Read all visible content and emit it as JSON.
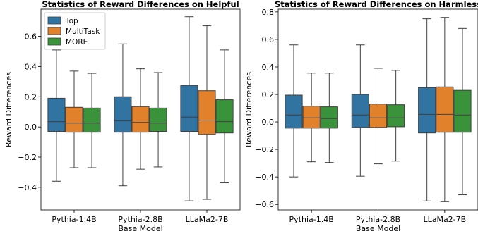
{
  "chart_data": [
    {
      "type": "box",
      "title": "Statistics of Reward Differences on Helpful",
      "xlabel": "Base Model",
      "ylabel": "Reward Differences",
      "ylim": [
        -0.55,
        0.78
      ],
      "yticks": [
        -0.4,
        -0.2,
        0.0,
        0.2,
        0.4,
        0.6
      ],
      "ytick_labels": [
        "−0.4",
        "−0.2",
        "0.0",
        "0.2",
        "0.4",
        "0.6"
      ],
      "categories": [
        "Pythia-1.4B",
        "Pythia-2.8B",
        "LLaMa2-7B"
      ],
      "legend": {
        "position": "top-left"
      },
      "series": [
        {
          "name": "Top",
          "color": "#3274a1",
          "boxes": [
            {
              "min": -0.36,
              "q1": -0.03,
              "median": 0.035,
              "q3": 0.19,
              "max": 0.51
            },
            {
              "min": -0.39,
              "q1": -0.035,
              "median": 0.04,
              "q3": 0.2,
              "max": 0.55
            },
            {
              "min": -0.49,
              "q1": -0.03,
              "median": 0.065,
              "q3": 0.275,
              "max": 0.73
            }
          ]
        },
        {
          "name": "MultiTask",
          "color": "#e1812c",
          "boxes": [
            {
              "min": -0.27,
              "q1": -0.035,
              "median": 0.025,
              "q3": 0.13,
              "max": 0.37
            },
            {
              "min": -0.28,
              "q1": -0.035,
              "median": 0.03,
              "q3": 0.135,
              "max": 0.385
            },
            {
              "min": -0.48,
              "q1": -0.05,
              "median": 0.045,
              "q3": 0.24,
              "max": 0.67
            }
          ]
        },
        {
          "name": "MORE",
          "color": "#3a923a",
          "boxes": [
            {
              "min": -0.27,
              "q1": -0.035,
              "median": 0.025,
              "q3": 0.125,
              "max": 0.355
            },
            {
              "min": -0.265,
              "q1": -0.03,
              "median": 0.025,
              "q3": 0.125,
              "max": 0.36
            },
            {
              "min": -0.37,
              "q1": -0.04,
              "median": 0.035,
              "q3": 0.18,
              "max": 0.51
            }
          ]
        }
      ]
    },
    {
      "type": "box",
      "title": "Statistics of Reward Differences on Harmless",
      "xlabel": "Base Model",
      "ylabel": "Reward Differences",
      "ylim": [
        -0.64,
        0.82
      ],
      "yticks": [
        -0.6,
        -0.4,
        -0.2,
        0.0,
        0.2,
        0.4,
        0.6,
        0.8
      ],
      "ytick_labels": [
        "−0.6",
        "−0.4",
        "−0.2",
        "0.0",
        "0.2",
        "0.4",
        "0.6",
        "0.8"
      ],
      "categories": [
        "Pythia-1.4B",
        "Pythia-2.8B",
        "LLaMa2-7B"
      ],
      "series": [
        {
          "name": "Top",
          "color": "#3274a1",
          "boxes": [
            {
              "min": -0.4,
              "q1": -0.045,
              "median": 0.05,
              "q3": 0.195,
              "max": 0.56
            },
            {
              "min": -0.395,
              "q1": -0.04,
              "median": 0.05,
              "q3": 0.2,
              "max": 0.56
            },
            {
              "min": -0.575,
              "q1": -0.08,
              "median": 0.055,
              "q3": 0.25,
              "max": 0.75
            }
          ]
        },
        {
          "name": "MultiTask",
          "color": "#e1812c",
          "boxes": [
            {
              "min": -0.29,
              "q1": -0.045,
              "median": 0.03,
              "q3": 0.115,
              "max": 0.355
            },
            {
              "min": -0.305,
              "q1": -0.04,
              "median": 0.03,
              "q3": 0.13,
              "max": 0.39
            },
            {
              "min": -0.58,
              "q1": -0.075,
              "median": 0.055,
              "q3": 0.255,
              "max": 0.76
            }
          ]
        },
        {
          "name": "MORE",
          "color": "#3a923a",
          "boxes": [
            {
              "min": -0.295,
              "q1": -0.045,
              "median": 0.025,
              "q3": 0.11,
              "max": 0.355
            },
            {
              "min": -0.285,
              "q1": -0.035,
              "median": 0.03,
              "q3": 0.125,
              "max": 0.375
            },
            {
              "min": -0.53,
              "q1": -0.075,
              "median": 0.05,
              "q3": 0.23,
              "max": 0.68
            }
          ]
        }
      ]
    }
  ]
}
